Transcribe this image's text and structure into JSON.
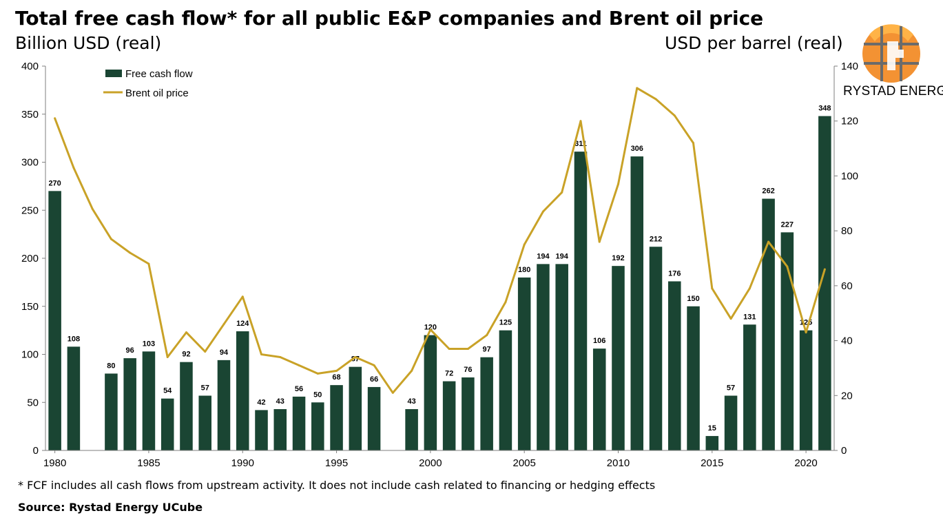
{
  "header": {
    "title": "Total free cash flow* for all public E&P companies and Brent oil price",
    "unit_left": "Billion USD (real)",
    "unit_right": "USD per barrel (real)"
  },
  "logo": {
    "name": "RYSTAD ENERGY",
    "icon": "rystad-globe-icon"
  },
  "footer": {
    "footnote": "* FCF includes all cash flows from upstream activity. It does not include cash related to financing or hedging effects",
    "source": "Source: Rystad Energy UCube"
  },
  "colors": {
    "bar": "#1a4533",
    "line": "#c9a227",
    "axis": "#7f7f7f"
  },
  "chart_data": {
    "type": "bar",
    "x": [
      1980,
      1981,
      1982,
      1983,
      1984,
      1985,
      1986,
      1987,
      1988,
      1989,
      1990,
      1991,
      1992,
      1993,
      1994,
      1995,
      1996,
      1997,
      1998,
      1999,
      2000,
      2001,
      2002,
      2003,
      2004,
      2005,
      2006,
      2007,
      2008,
      2009,
      2010,
      2011,
      2012,
      2013,
      2014,
      2015,
      2016,
      2017,
      2018,
      2019,
      2020,
      2021
    ],
    "xticks": [
      "1980",
      "1985",
      "1990",
      "1995",
      "2000",
      "2005",
      "2010",
      "2015",
      "2020"
    ],
    "series": [
      {
        "name": "Free cash flow",
        "axis": "left",
        "type": "bar",
        "values": [
          270,
          108,
          0,
          80,
          96,
          103,
          54,
          92,
          57,
          94,
          124,
          42,
          43,
          56,
          50,
          68,
          87,
          66,
          0,
          43,
          120,
          72,
          76,
          97,
          125,
          180,
          194,
          194,
          311,
          106,
          192,
          306,
          212,
          176,
          150,
          15,
          57,
          131,
          262,
          227,
          125,
          348
        ],
        "labels": [
          "270",
          "108",
          "",
          "80",
          "96",
          "103",
          "54",
          "92",
          "57",
          "94",
          "124",
          "42",
          "43",
          "56",
          "50",
          "68",
          "87",
          "66",
          "",
          "43",
          "120",
          "72",
          "76",
          "97",
          "125",
          "180",
          "194",
          "194",
          "311",
          "106",
          "192",
          "306",
          "212",
          "176",
          "150",
          "15",
          "57",
          "131",
          "262",
          "227",
          "125",
          "348"
        ]
      },
      {
        "name": "Brent oil price",
        "axis": "right",
        "type": "line",
        "values": [
          121,
          103,
          88,
          77,
          72,
          68,
          34,
          43,
          36,
          46,
          56,
          35,
          34,
          31,
          28,
          29,
          34,
          31,
          21,
          29,
          44,
          37,
          37,
          42,
          54,
          75,
          87,
          94,
          120,
          76,
          97,
          132,
          128,
          122,
          112,
          59,
          48,
          59,
          76,
          67,
          43,
          66
        ]
      }
    ],
    "y_left": {
      "min": 0,
      "max": 400,
      "ticks": [
        "0",
        "50",
        "100",
        "150",
        "200",
        "250",
        "300",
        "350",
        "400"
      ]
    },
    "y_right": {
      "min": 0,
      "max": 140,
      "ticks": [
        "0",
        "20",
        "40",
        "60",
        "80",
        "100",
        "120",
        "140"
      ]
    },
    "legend": "top-left",
    "grid": false
  }
}
